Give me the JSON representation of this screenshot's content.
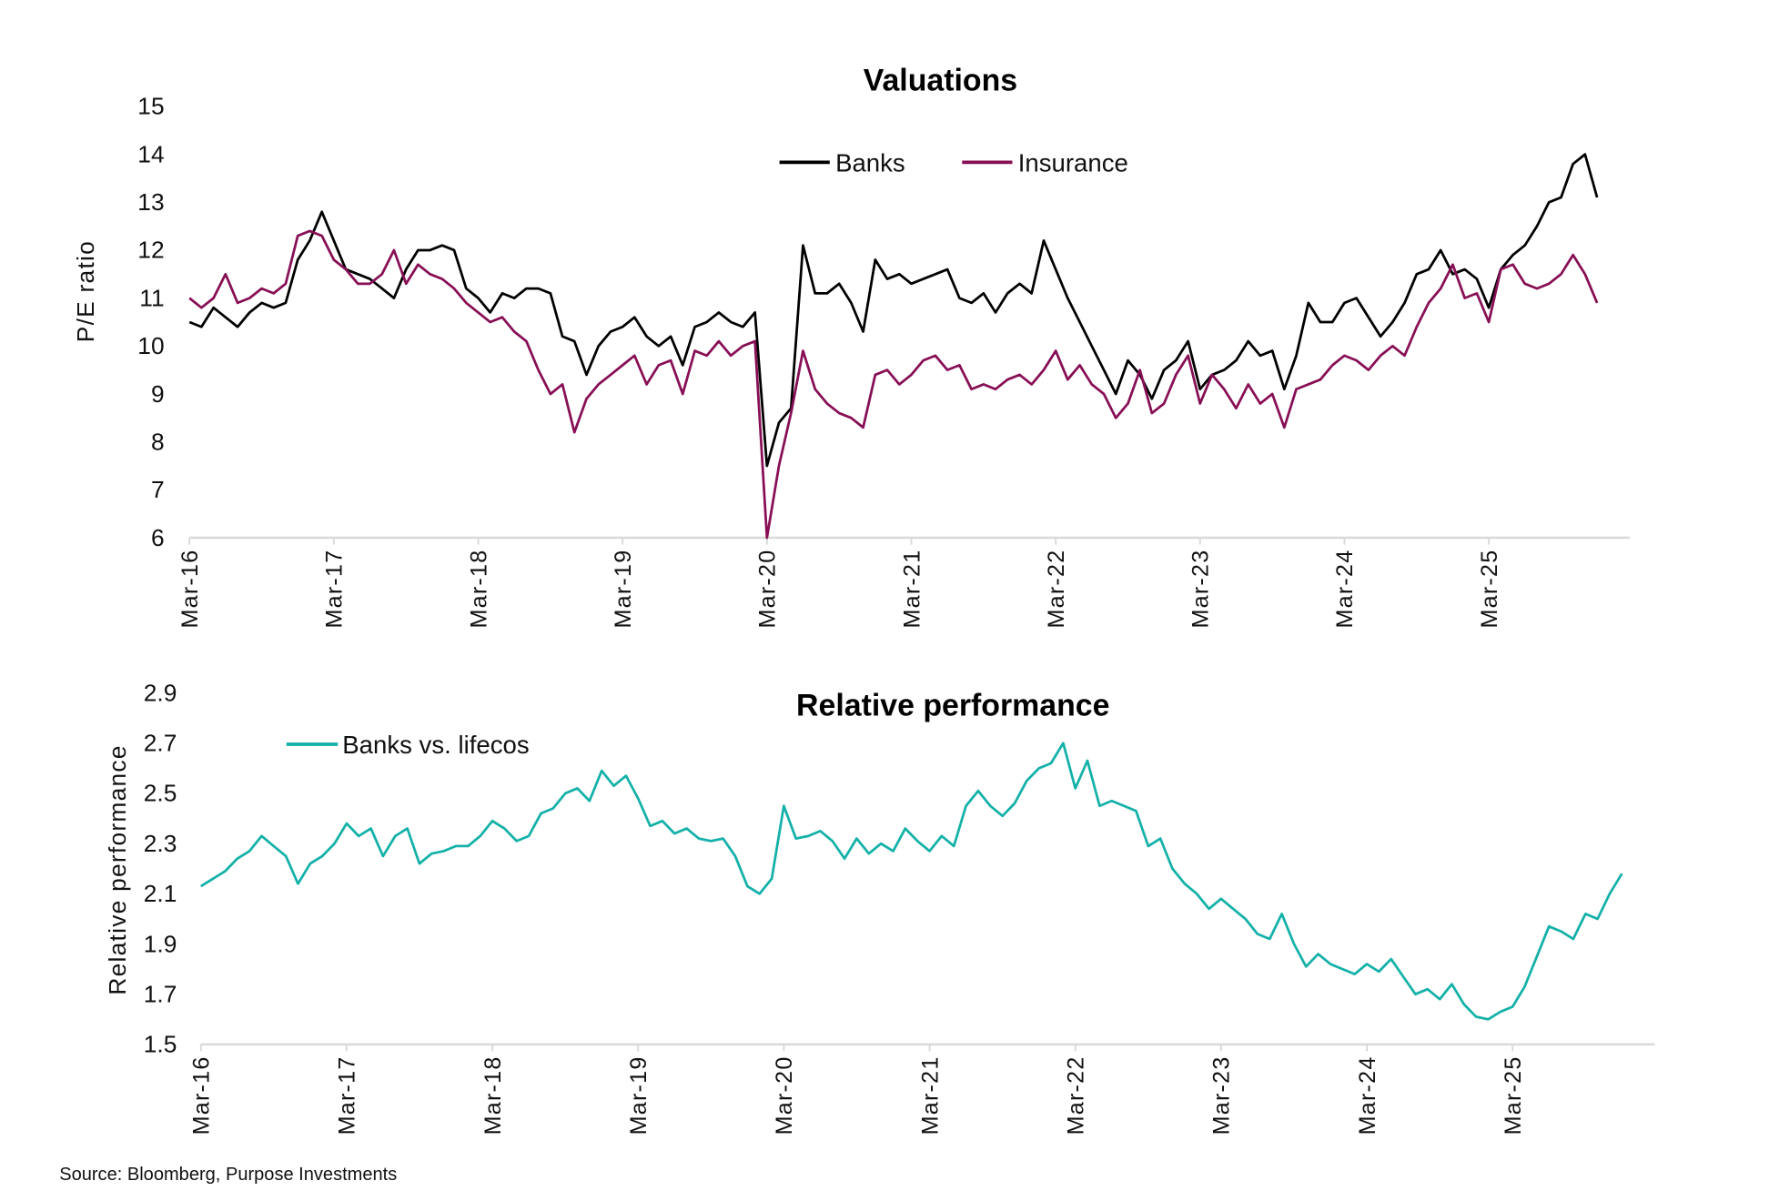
{
  "source": "Source: Bloomberg, Purpose Investments",
  "colors": {
    "banks": "#000000",
    "insurance": "#870f55",
    "relative": "#14b1a8",
    "axis": "#d9d9d9"
  },
  "chart_data": [
    {
      "type": "line",
      "title": "Valuations",
      "ylabel": "P/E ratio",
      "xlabel": "",
      "ylim": [
        6,
        15
      ],
      "yticks": [
        "6",
        "7",
        "8",
        "9",
        "10",
        "11",
        "12",
        "13",
        "14",
        "15"
      ],
      "xticks": [
        "Mar-16",
        "Mar-17",
        "Mar-18",
        "Mar-19",
        "Mar-20",
        "Mar-21",
        "Mar-22",
        "Mar-23",
        "Mar-24",
        "Mar-25"
      ],
      "legend_placement": "top-center",
      "grid": false,
      "start_month": "2016-03",
      "frequency": "monthly",
      "series": [
        {
          "name": "Banks",
          "color": "#000000",
          "values": [
            10.5,
            10.4,
            10.8,
            10.6,
            10.4,
            10.7,
            10.9,
            10.8,
            10.9,
            11.8,
            12.2,
            12.8,
            12.2,
            11.6,
            11.5,
            11.4,
            11.2,
            11.0,
            11.6,
            12.0,
            12.0,
            12.1,
            12.0,
            11.2,
            11.0,
            10.7,
            11.1,
            11.0,
            11.2,
            11.2,
            11.1,
            10.2,
            10.1,
            9.4,
            10.0,
            10.3,
            10.4,
            10.6,
            10.2,
            10.0,
            10.2,
            9.6,
            10.4,
            10.5,
            10.7,
            10.5,
            10.4,
            10.7,
            7.5,
            8.4,
            8.7,
            12.1,
            11.1,
            11.1,
            11.3,
            10.9,
            10.3,
            11.8,
            11.4,
            11.5,
            11.3,
            11.4,
            11.5,
            11.6,
            11.0,
            10.9,
            11.1,
            10.7,
            11.1,
            11.3,
            11.1,
            12.2,
            11.6,
            11.0,
            10.5,
            10.0,
            9.5,
            9.0,
            9.7,
            9.4,
            8.9,
            9.5,
            9.7,
            10.1,
            9.1,
            9.4,
            9.5,
            9.7,
            10.1,
            9.8,
            9.9,
            9.1,
            9.8,
            10.9,
            10.5,
            10.5,
            10.9,
            11.0,
            10.6,
            10.2,
            10.5,
            10.9,
            11.5,
            11.6,
            12.0,
            11.5,
            11.6,
            11.4,
            10.8,
            11.6,
            11.9,
            12.1,
            12.5,
            13.0,
            13.1,
            13.8,
            14.0,
            13.1
          ]
        },
        {
          "name": "Insurance",
          "color": "#870f55",
          "values": [
            11.0,
            10.8,
            11.0,
            11.5,
            10.9,
            11.0,
            11.2,
            11.1,
            11.3,
            12.3,
            12.4,
            12.3,
            11.8,
            11.6,
            11.3,
            11.3,
            11.5,
            12.0,
            11.3,
            11.7,
            11.5,
            11.4,
            11.2,
            10.9,
            10.7,
            10.5,
            10.6,
            10.3,
            10.1,
            9.5,
            9.0,
            9.2,
            8.2,
            8.9,
            9.2,
            9.4,
            9.6,
            9.8,
            9.2,
            9.6,
            9.7,
            9.0,
            9.9,
            9.8,
            10.1,
            9.8,
            10.0,
            10.1,
            6.0,
            7.5,
            8.6,
            9.9,
            9.1,
            8.8,
            8.6,
            8.5,
            8.3,
            9.4,
            9.5,
            9.2,
            9.4,
            9.7,
            9.8,
            9.5,
            9.6,
            9.1,
            9.2,
            9.1,
            9.3,
            9.4,
            9.2,
            9.5,
            9.9,
            9.3,
            9.6,
            9.2,
            9.0,
            8.5,
            8.8,
            9.5,
            8.6,
            8.8,
            9.4,
            9.8,
            8.8,
            9.4,
            9.1,
            8.7,
            9.2,
            8.8,
            9.0,
            8.3,
            9.1,
            9.2,
            9.3,
            9.6,
            9.8,
            9.7,
            9.5,
            9.8,
            10.0,
            9.8,
            10.4,
            10.9,
            11.2,
            11.7,
            11.0,
            11.1,
            10.5,
            11.6,
            11.7,
            11.3,
            11.2,
            11.3,
            11.5,
            11.9,
            11.5,
            10.9
          ]
        }
      ]
    },
    {
      "type": "line",
      "title": "Relative performance",
      "ylabel": "Relative performance",
      "xlabel": "",
      "ylim": [
        1.5,
        2.9
      ],
      "yticks": [
        "1.5",
        "1.7",
        "1.9",
        "2.1",
        "2.3",
        "2.5",
        "2.7",
        "2.9"
      ],
      "xticks": [
        "Mar-16",
        "Mar-17",
        "Mar-18",
        "Mar-19",
        "Mar-20",
        "Mar-21",
        "Mar-22",
        "Mar-23",
        "Mar-24",
        "Mar-25"
      ],
      "legend_placement": "top-left",
      "grid": false,
      "start_month": "2016-03",
      "frequency": "monthly",
      "series": [
        {
          "name": "Banks vs. lifecos",
          "color": "#14b1a8",
          "values": [
            2.13,
            2.16,
            2.19,
            2.24,
            2.27,
            2.33,
            2.29,
            2.25,
            2.14,
            2.22,
            2.25,
            2.3,
            2.38,
            2.33,
            2.36,
            2.25,
            2.33,
            2.36,
            2.22,
            2.26,
            2.27,
            2.29,
            2.29,
            2.33,
            2.39,
            2.36,
            2.31,
            2.33,
            2.42,
            2.44,
            2.5,
            2.52,
            2.47,
            2.59,
            2.53,
            2.57,
            2.48,
            2.37,
            2.39,
            2.34,
            2.36,
            2.32,
            2.31,
            2.32,
            2.25,
            2.13,
            2.1,
            2.16,
            2.45,
            2.32,
            2.33,
            2.35,
            2.31,
            2.24,
            2.32,
            2.26,
            2.3,
            2.27,
            2.36,
            2.31,
            2.27,
            2.33,
            2.29,
            2.45,
            2.51,
            2.45,
            2.41,
            2.46,
            2.55,
            2.6,
            2.62,
            2.7,
            2.52,
            2.63,
            2.45,
            2.47,
            2.45,
            2.43,
            2.29,
            2.32,
            2.2,
            2.14,
            2.1,
            2.04,
            2.08,
            2.04,
            2.0,
            1.94,
            1.92,
            2.02,
            1.9,
            1.81,
            1.86,
            1.82,
            1.8,
            1.78,
            1.82,
            1.79,
            1.84,
            1.77,
            1.7,
            1.72,
            1.68,
            1.74,
            1.66,
            1.61,
            1.6,
            1.63,
            1.65,
            1.73,
            1.85,
            1.97,
            1.95,
            1.92,
            2.02,
            2.0,
            2.1,
            2.18
          ]
        }
      ]
    }
  ]
}
